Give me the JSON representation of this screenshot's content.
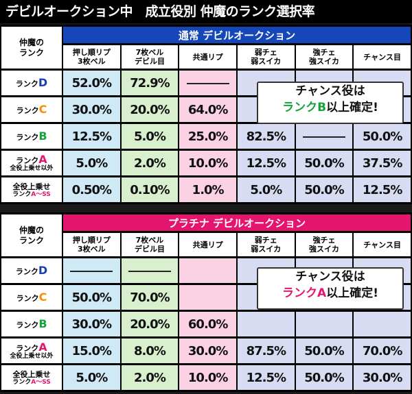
{
  "title": "デビルオークション中　成立役別 仲魔のランク選択率",
  "corner_label_1": "仲魔の",
  "corner_label_2": "ランク",
  "columns": [
    {
      "line1": "押し順リプ",
      "line2": "3枚ベル"
    },
    {
      "line1": "7枚ベル",
      "line2": "デビル目"
    },
    {
      "line1": "共通リプ",
      "line2": ""
    },
    {
      "line1": "弱チェ",
      "line2": "弱スイカ"
    },
    {
      "line1": "強チェ",
      "line2": "強スイカ"
    },
    {
      "line1": "チャンス目",
      "line2": ""
    }
  ],
  "rank_prefix": "ランク",
  "row_labels": [
    {
      "letter": "D",
      "sub": ""
    },
    {
      "letter": "C",
      "sub": ""
    },
    {
      "letter": "B",
      "sub": ""
    },
    {
      "letter": "A",
      "sub": "全役上乗せ以外"
    },
    {
      "top": "全役上乗せ",
      "sub_prefix": "ランク",
      "sub_range": "A～SS"
    }
  ],
  "sections": [
    {
      "banner": "通常 デビルオークション",
      "banner_color": "#1547b8",
      "rows": [
        [
          "52.0%",
          "72.9%",
          "——",
          "",
          "",
          ""
        ],
        [
          "30.0%",
          "20.0%",
          "64.0%",
          "",
          "",
          ""
        ],
        [
          "12.5%",
          "5.0%",
          "25.0%",
          "82.5%",
          "——",
          "50.0%"
        ],
        [
          "5.0%",
          "2.0%",
          "10.0%",
          "12.5%",
          "50.0%",
          "37.5%"
        ],
        [
          "0.50%",
          "0.10%",
          "1.0%",
          "5.0%",
          "50.0%",
          "12.5%"
        ]
      ],
      "note_line1": "チャンス役は",
      "note_rank": "ランクB",
      "note_tail": "以上確定!"
    },
    {
      "banner": "プラチナ デビルオークション",
      "banner_color": "#e4156f",
      "rows": [
        [
          "——",
          "——",
          "",
          "",
          "",
          ""
        ],
        [
          "50.0%",
          "70.0%",
          "",
          "",
          "",
          ""
        ],
        [
          "30.0%",
          "20.0%",
          "60.0%",
          "",
          "",
          ""
        ],
        [
          "15.0%",
          "8.0%",
          "30.0%",
          "87.5%",
          "50.0%",
          "70.0%"
        ],
        [
          "5.0%",
          "2.0%",
          "10.0%",
          "12.5%",
          "50.0%",
          "30.0%"
        ]
      ],
      "note_line1": "チャンス役は",
      "note_rank": "ランクA",
      "note_tail": "以上確定!"
    }
  ]
}
